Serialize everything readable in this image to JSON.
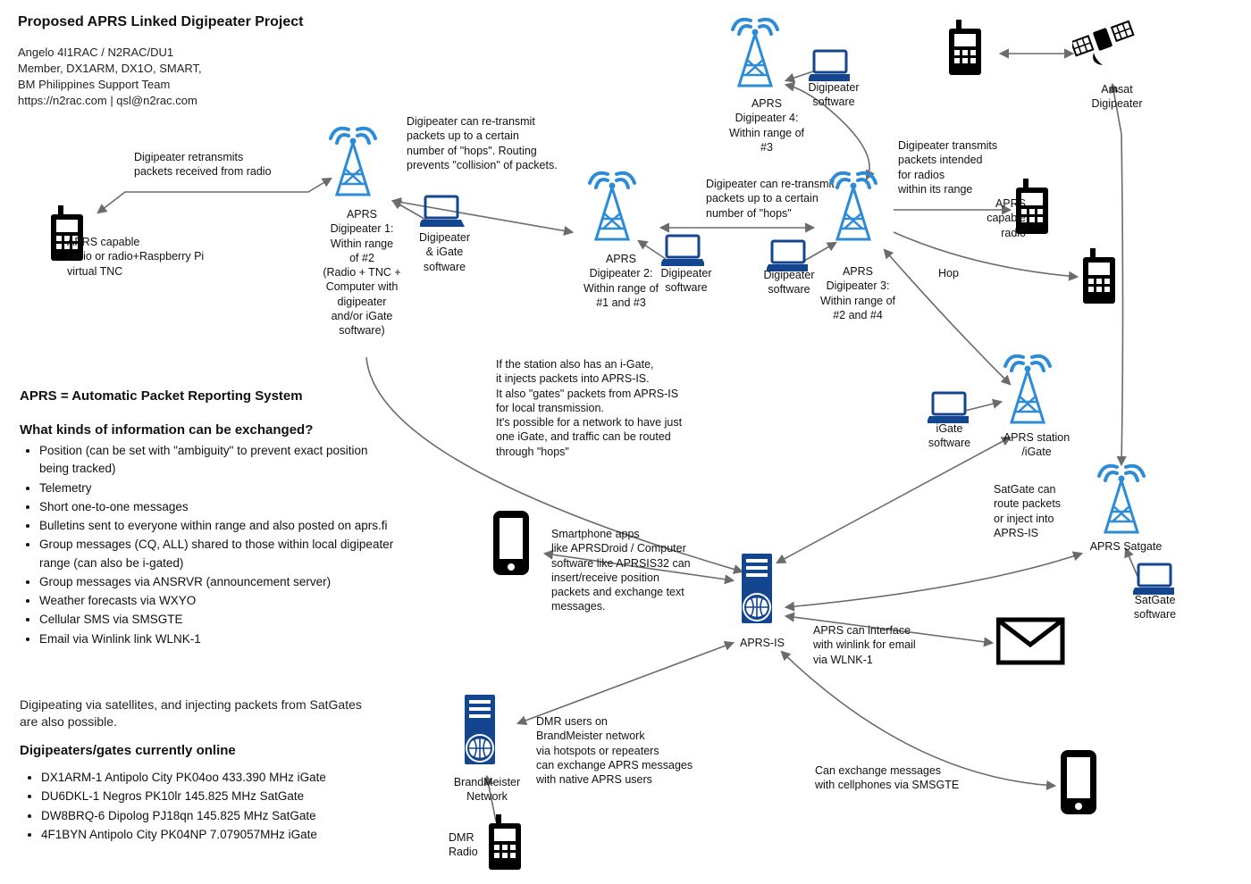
{
  "colors": {
    "text": "#111111",
    "towerBlue": "#2e8bd6",
    "iconBlack": "#000000",
    "serverBlue": "#14458f",
    "arrow": "#6b6b6b",
    "bg": "#ffffff"
  },
  "title": "Proposed APRS Linked Digipeater Project",
  "author": {
    "l1": "Angelo 4I1RAC / N2RAC/DU1",
    "l2": "Member, DX1ARM, DX1O, SMART,",
    "l3": "BM Philippines Support Team",
    "l4": "https://n2rac.com | qsl@n2rac.com"
  },
  "aprs_def": "APRS = Automatic Packet Reporting System",
  "exch_hdr": "What kinds of information can be exchanged?",
  "exch_list": [
    "Position (can be set with \"ambiguity\" to prevent exact position being tracked)",
    "Telemetry",
    "Short one-to-one messages",
    "Bulletins sent to everyone within range and also posted on aprs.fi",
    "Group messages (CQ, ALL) shared to those within local digipeater range (can also be i-gated)",
    "Group messages via ANSRVR (announcement server)",
    "Weather forecasts via WXYO",
    "Cellular SMS via SMSGTE",
    "Email via Winlink link WLNK-1"
  ],
  "sat_note": "Digipeating via satellites, and injecting packets from SatGates are also possible.",
  "online_hdr": "Digipeaters/gates currently online",
  "online_list": [
    "DX1ARM-1 Antipolo City PK04oo 433.390 MHz iGate",
    "DU6DKL-1 Negros PK10lr 145.825 MHz SatGate",
    "DW8BRQ-6  Dipolog PJ18qn 145.825 MHz SatGate",
    "4F1BYN Antipolo City PK04NP 7.079057MHz iGate"
  ],
  "labels": {
    "radio_left": "APRS capable\nradio or radio+Raspberry Pi\nvirtual TNC",
    "retx": "Digipeater retransmits\npackets received from radio",
    "digi1": "APRS\nDigipeater 1:\nWithin range\nof #2\n(Radio + TNC +\nComputer with\ndigipeater\nand/or iGate\nsoftware)",
    "laptop1": "Digipeater\n& iGate\nsoftware",
    "hops_note": "Digipeater can re-transmit\npackets up to a certain\nnumber of \"hops\". Routing\nprevents \"collision\" of packets.",
    "digi2": "APRS\nDigipeater 2:\nWithin range of\n#1 and #3",
    "laptop2": "Digipeater\nsoftware",
    "hops2": "Digipeater can re-transmit\npackets up to a certain\nnumber of \"hops\"",
    "digi3": "APRS\nDigipeater 3:\nWithin range of\n#2 and #4",
    "laptop3": "Digipeater\nsoftware",
    "digi4": "APRS\nDigipeater 4:\nWithin range of\n#3",
    "laptop4": "Digipeater\nsoftware",
    "right_tx": "Digipeater transmits\npackets  intended\nfor radios\nwithin its range",
    "aprs_radio_r": "APRS\ncapable\nradio",
    "amsat": "Amsat\nDigipeater",
    "hop": "Hop",
    "igate_note": "If the station also has an i-Gate,\nit injects packets into APRS-IS.\nIt also \"gates\" packets from APRS-IS\n for local transmission.\nIt's possible for a network to have just\none iGate, and traffic can be routed\nthrough \"hops\"",
    "igate_sw": "iGate\nsoftware",
    "station_igate": "APRS station\n/iGate",
    "satgate": "APRS Satgate",
    "satgate_sw": "SatGate\nsoftware",
    "satgate_note": "SatGate can\nroute packets\nor inject into\nAPRS-IS",
    "smartphone_note": "Smartphone apps\nlike APRSDroid / Computer\nsoftware like APRSIS32 can\ninsert/receive position\npackets and exchange text\nmessages.",
    "aprsis": "APRS-IS",
    "winlink": "APRS can interface\nwith winlink for email\nvia WLNK-1",
    "bm": "BrandMeister\nNetwork",
    "bm_note": "DMR users on\nBrandMeister network\nvia hotspots or repeaters\ncan exchange APRS messages\nwith native APRS users",
    "dmr": "DMR\nRadio",
    "smsgte": "Can exchange messages\nwith cellphones via SMSGTE"
  }
}
